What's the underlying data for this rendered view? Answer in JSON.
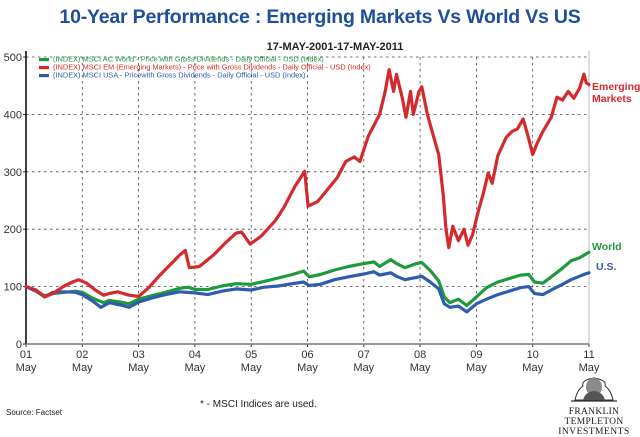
{
  "header": {
    "title": "10-Year Performance : Emerging Markets Vs World Vs US",
    "subtitle": "17-MAY-2001-17-MAY-2011"
  },
  "footer": {
    "source": "Source: Factset",
    "footnote": "* - MSCI Indices are used.",
    "logo_line1": "FRANKLIN TEMPLETON",
    "logo_line2": "INVESTMENTS",
    "logo_icon": "benjamin-franklin-portrait-icon"
  },
  "chart_data": {
    "type": "line",
    "title": "10-Year Performance : Emerging Markets Vs World Vs US",
    "subtitle": "17-MAY-2001-17-MAY-2011",
    "xlabel": "",
    "ylabel": "",
    "xlim": [
      2001.37,
      2011.37
    ],
    "ylim": [
      0,
      500
    ],
    "yticks": [
      0,
      100,
      200,
      300,
      400,
      500
    ],
    "xticks": [
      {
        "x": 2001.37,
        "label1": "01",
        "label2": "May"
      },
      {
        "x": 2002.37,
        "label1": "02",
        "label2": "May"
      },
      {
        "x": 2003.37,
        "label1": "03",
        "label2": "May"
      },
      {
        "x": 2004.37,
        "label1": "04",
        "label2": "May"
      },
      {
        "x": 2005.37,
        "label1": "05",
        "label2": "May"
      },
      {
        "x": 2006.37,
        "label1": "06",
        "label2": "May"
      },
      {
        "x": 2007.37,
        "label1": "07",
        "label2": "May"
      },
      {
        "x": 2008.37,
        "label1": "08",
        "label2": "May"
      },
      {
        "x": 2009.37,
        "label1": "09",
        "label2": "May"
      },
      {
        "x": 2010.37,
        "label1": "10",
        "label2": "May"
      },
      {
        "x": 2011.37,
        "label1": "11",
        "label2": "May"
      }
    ],
    "grid": true,
    "legend_position": "top-left",
    "series": [
      {
        "name": "(INDEX) MSCI AC World - Price with Gross Dividends - Daily Official - USD (Index)",
        "end_label": [
          "World"
        ],
        "color": "#1e9a3c",
        "points": [
          [
            2001.37,
            100
          ],
          [
            2001.55,
            92
          ],
          [
            2001.7,
            84
          ],
          [
            2001.85,
            88
          ],
          [
            2002.05,
            90
          ],
          [
            2002.25,
            92
          ],
          [
            2002.37,
            90
          ],
          [
            2002.55,
            80
          ],
          [
            2002.75,
            72
          ],
          [
            2002.85,
            76
          ],
          [
            2003.05,
            73
          ],
          [
            2003.2,
            70
          ],
          [
            2003.37,
            78
          ],
          [
            2003.6,
            84
          ],
          [
            2003.85,
            90
          ],
          [
            2004.1,
            97
          ],
          [
            2004.25,
            99
          ],
          [
            2004.37,
            95
          ],
          [
            2004.6,
            95
          ],
          [
            2004.85,
            101
          ],
          [
            2005.1,
            105
          ],
          [
            2005.37,
            104
          ],
          [
            2005.6,
            109
          ],
          [
            2005.85,
            115
          ],
          [
            2006.1,
            121
          ],
          [
            2006.3,
            127
          ],
          [
            2006.4,
            117
          ],
          [
            2006.6,
            121
          ],
          [
            2006.85,
            129
          ],
          [
            2007.1,
            135
          ],
          [
            2007.37,
            140
          ],
          [
            2007.55,
            143
          ],
          [
            2007.65,
            135
          ],
          [
            2007.85,
            147
          ],
          [
            2007.95,
            140
          ],
          [
            2008.1,
            133
          ],
          [
            2008.3,
            140
          ],
          [
            2008.4,
            142
          ],
          [
            2008.55,
            128
          ],
          [
            2008.7,
            110
          ],
          [
            2008.8,
            82
          ],
          [
            2008.9,
            72
          ],
          [
            2009.05,
            78
          ],
          [
            2009.2,
            67
          ],
          [
            2009.37,
            82
          ],
          [
            2009.55,
            98
          ],
          [
            2009.75,
            108
          ],
          [
            2009.95,
            114
          ],
          [
            2010.15,
            120
          ],
          [
            2010.3,
            121
          ],
          [
            2010.4,
            108
          ],
          [
            2010.55,
            106
          ],
          [
            2010.7,
            117
          ],
          [
            2010.9,
            132
          ],
          [
            2011.05,
            145
          ],
          [
            2011.2,
            150
          ],
          [
            2011.3,
            156
          ],
          [
            2011.37,
            160
          ]
        ]
      },
      {
        "name": "(INDEX) MSCI EM (Emerging Markets) - Price with Gross Dividends - Daily Official - USD (Index)",
        "end_label": [
          "Emerging",
          "Markets"
        ],
        "color": "#d42a2e",
        "points": [
          [
            2001.37,
            100
          ],
          [
            2001.55,
            94
          ],
          [
            2001.7,
            82
          ],
          [
            2001.85,
            88
          ],
          [
            2002.05,
            101
          ],
          [
            2002.2,
            108
          ],
          [
            2002.3,
            112
          ],
          [
            2002.45,
            106
          ],
          [
            2002.6,
            94
          ],
          [
            2002.75,
            85
          ],
          [
            2002.85,
            88
          ],
          [
            2003.0,
            91
          ],
          [
            2003.2,
            85
          ],
          [
            2003.37,
            83
          ],
          [
            2003.55,
            98
          ],
          [
            2003.75,
            120
          ],
          [
            2003.95,
            140
          ],
          [
            2004.1,
            155
          ],
          [
            2004.2,
            163
          ],
          [
            2004.27,
            133
          ],
          [
            2004.45,
            135
          ],
          [
            2004.7,
            155
          ],
          [
            2004.9,
            175
          ],
          [
            2005.1,
            193
          ],
          [
            2005.2,
            195
          ],
          [
            2005.35,
            174
          ],
          [
            2005.55,
            188
          ],
          [
            2005.8,
            215
          ],
          [
            2005.95,
            238
          ],
          [
            2006.15,
            275
          ],
          [
            2006.32,
            301
          ],
          [
            2006.38,
            240
          ],
          [
            2006.55,
            248
          ],
          [
            2006.75,
            272
          ],
          [
            2006.9,
            290
          ],
          [
            2007.05,
            318
          ],
          [
            2007.2,
            326
          ],
          [
            2007.3,
            318
          ],
          [
            2007.45,
            362
          ],
          [
            2007.65,
            400
          ],
          [
            2007.75,
            440
          ],
          [
            2007.82,
            478
          ],
          [
            2007.9,
            440
          ],
          [
            2007.95,
            470
          ],
          [
            2008.05,
            430
          ],
          [
            2008.12,
            395
          ],
          [
            2008.2,
            440
          ],
          [
            2008.25,
            400
          ],
          [
            2008.35,
            440
          ],
          [
            2008.4,
            448
          ],
          [
            2008.5,
            400
          ],
          [
            2008.6,
            365
          ],
          [
            2008.7,
            330
          ],
          [
            2008.78,
            260
          ],
          [
            2008.83,
            200
          ],
          [
            2008.88,
            168
          ],
          [
            2008.95,
            205
          ],
          [
            2009.05,
            180
          ],
          [
            2009.15,
            200
          ],
          [
            2009.22,
            172
          ],
          [
            2009.3,
            190
          ],
          [
            2009.4,
            230
          ],
          [
            2009.5,
            265
          ],
          [
            2009.58,
            298
          ],
          [
            2009.65,
            280
          ],
          [
            2009.75,
            328
          ],
          [
            2009.9,
            360
          ],
          [
            2010.0,
            370
          ],
          [
            2010.1,
            375
          ],
          [
            2010.2,
            392
          ],
          [
            2010.28,
            365
          ],
          [
            2010.37,
            330
          ],
          [
            2010.45,
            350
          ],
          [
            2010.55,
            370
          ],
          [
            2010.7,
            395
          ],
          [
            2010.8,
            430
          ],
          [
            2010.9,
            425
          ],
          [
            2011.0,
            440
          ],
          [
            2011.1,
            428
          ],
          [
            2011.2,
            445
          ],
          [
            2011.28,
            470
          ],
          [
            2011.32,
            455
          ],
          [
            2011.37,
            452
          ]
        ]
      },
      {
        "name": "(INDEX) MSCI USA - Pricewith Gross Dividends - Daily Official - USD (Index)",
        "end_label": [
          "U.S."
        ],
        "color": "#2f5bb0",
        "points": [
          [
            2001.37,
            100
          ],
          [
            2001.55,
            92
          ],
          [
            2001.7,
            82
          ],
          [
            2001.85,
            90
          ],
          [
            2002.05,
            91
          ],
          [
            2002.25,
            90
          ],
          [
            2002.37,
            86
          ],
          [
            2002.55,
            75
          ],
          [
            2002.7,
            64
          ],
          [
            2002.85,
            72
          ],
          [
            2003.05,
            68
          ],
          [
            2003.2,
            64
          ],
          [
            2003.37,
            73
          ],
          [
            2003.6,
            80
          ],
          [
            2003.85,
            86
          ],
          [
            2004.1,
            91
          ],
          [
            2004.37,
            89
          ],
          [
            2004.6,
            86
          ],
          [
            2004.85,
            92
          ],
          [
            2005.1,
            96
          ],
          [
            2005.37,
            94
          ],
          [
            2005.6,
            99
          ],
          [
            2005.85,
            101
          ],
          [
            2006.1,
            105
          ],
          [
            2006.3,
            108
          ],
          [
            2006.4,
            102
          ],
          [
            2006.6,
            104
          ],
          [
            2006.85,
            112
          ],
          [
            2007.1,
            117
          ],
          [
            2007.37,
            122
          ],
          [
            2007.55,
            126
          ],
          [
            2007.65,
            120
          ],
          [
            2007.85,
            124
          ],
          [
            2007.95,
            118
          ],
          [
            2008.1,
            112
          ],
          [
            2008.3,
            116
          ],
          [
            2008.4,
            118
          ],
          [
            2008.55,
            108
          ],
          [
            2008.7,
            96
          ],
          [
            2008.8,
            70
          ],
          [
            2008.9,
            64
          ],
          [
            2009.05,
            66
          ],
          [
            2009.2,
            56
          ],
          [
            2009.37,
            70
          ],
          [
            2009.55,
            78
          ],
          [
            2009.75,
            86
          ],
          [
            2009.95,
            92
          ],
          [
            2010.15,
            98
          ],
          [
            2010.3,
            100
          ],
          [
            2010.4,
            88
          ],
          [
            2010.55,
            86
          ],
          [
            2010.7,
            94
          ],
          [
            2010.9,
            104
          ],
          [
            2011.05,
            112
          ],
          [
            2011.2,
            118
          ],
          [
            2011.3,
            122
          ],
          [
            2011.37,
            124
          ]
        ]
      }
    ]
  }
}
